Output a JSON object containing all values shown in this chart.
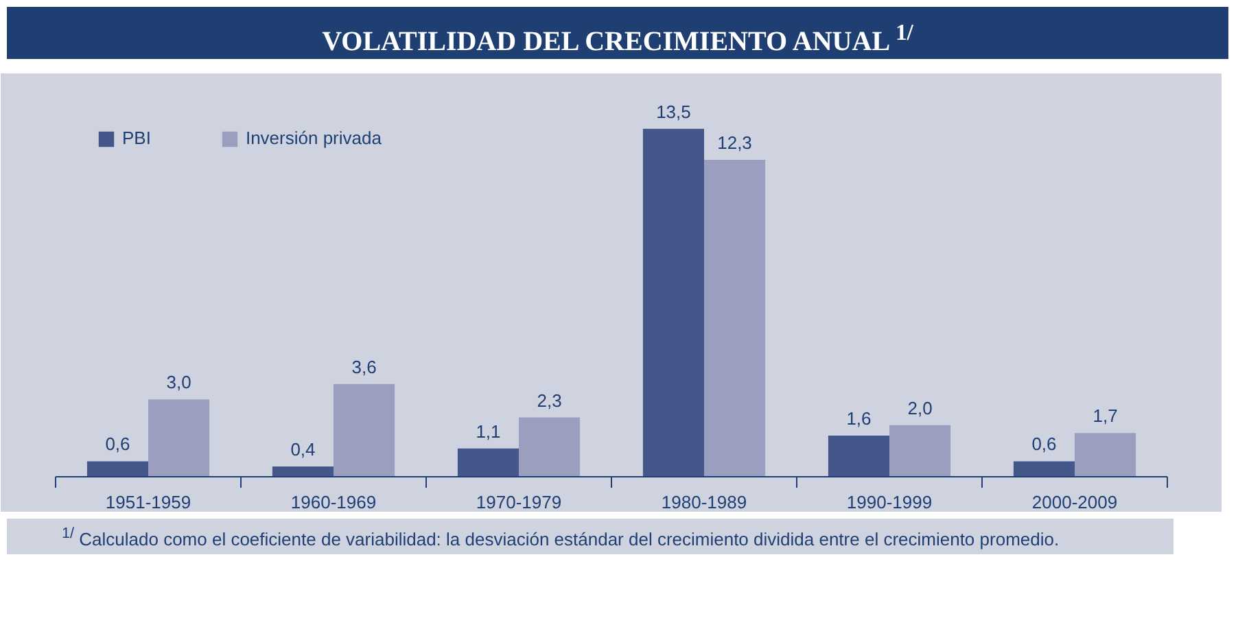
{
  "chart_data": {
    "type": "bar",
    "title": "VOLATILIDAD DEL CRECIMIENTO ANUAL $^{1/}$",
    "categories": [
      "1951-1959",
      "1960-1969",
      "1970-1979",
      "1980-1989",
      "1990-1999",
      "2000-2009"
    ],
    "series": [
      {
        "name": "PBI",
        "color": "#44568a",
        "values": [
          0.6,
          0.4,
          1.1,
          13.5,
          1.6,
          0.6
        ],
        "value_labels": [
          "0,6",
          "0,4",
          "1,1",
          "13,5",
          "1,6",
          "0,6"
        ]
      },
      {
        "name": "Inversión privada",
        "color": "#9a9fbf",
        "values": [
          3.0,
          3.6,
          2.3,
          12.3,
          2.0,
          1.7
        ],
        "value_labels": [
          "3,0",
          "3,6",
          "2,3",
          "12,3",
          "2,0",
          "1,7"
        ]
      }
    ],
    "legend": "top left",
    "grid": false,
    "annotations": [
      "$^{1/}$ Calculado como el coeficiente de variabilidad: la desviación estándar del crecimiento dividida entre el crecimiento promedio."
    ]
  }
}
